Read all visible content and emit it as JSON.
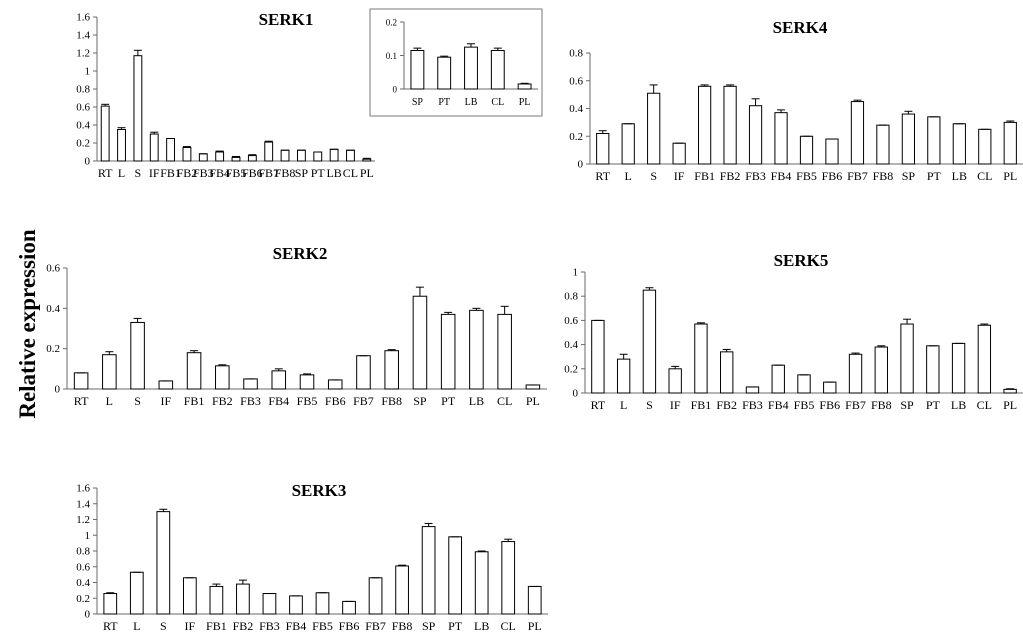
{
  "figure": {
    "ylabel": "Relative expression"
  },
  "chart_data": [
    {
      "id": "serk1",
      "type": "bar",
      "title": "SERK1",
      "xlabel": "",
      "ylabel": "",
      "categories": [
        "RT",
        "L",
        "S",
        "IF",
        "FB1",
        "FB2",
        "FB3",
        "FB4",
        "FB5",
        "FB6",
        "FB7",
        "FB8",
        "SP",
        "PT",
        "LB",
        "CL",
        "PL"
      ],
      "values": [
        0.61,
        0.35,
        1.17,
        0.3,
        0.25,
        0.15,
        0.08,
        0.1,
        0.04,
        0.06,
        0.21,
        0.12,
        0.12,
        0.1,
        0.13,
        0.12,
        0.02
      ],
      "errors": [
        0.02,
        0.02,
        0.06,
        0.02,
        0,
        0.01,
        0,
        0.01,
        0.01,
        0.01,
        0.01,
        0,
        0,
        0,
        0,
        0,
        0.01
      ],
      "ylim": [
        0,
        1.6
      ],
      "yticks": [
        "0",
        "0.2",
        "0.4",
        "0.6",
        "0.8",
        "1",
        "1.2",
        "1.4",
        "1.6"
      ],
      "grid": false,
      "legend": "none",
      "inset": {
        "type": "bar",
        "categories": [
          "SP",
          "PT",
          "LB",
          "CL",
          "PL"
        ],
        "values": [
          0.115,
          0.095,
          0.125,
          0.115,
          0.015
        ],
        "errors": [
          0.007,
          0.003,
          0.01,
          0.007,
          0.002
        ],
        "ylim": [
          0,
          0.2
        ],
        "yticks": [
          "0",
          "0.1",
          "0.2"
        ]
      }
    },
    {
      "id": "serk4",
      "type": "bar",
      "title": "SERK4",
      "xlabel": "",
      "ylabel": "",
      "categories": [
        "RT",
        "L",
        "S",
        "IF",
        "FB1",
        "FB2",
        "FB3",
        "FB4",
        "FB5",
        "FB6",
        "FB7",
        "FB8",
        "SP",
        "PT",
        "LB",
        "CL",
        "PL"
      ],
      "values": [
        0.22,
        0.29,
        0.51,
        0.15,
        0.56,
        0.56,
        0.42,
        0.37,
        0.2,
        0.18,
        0.45,
        0.28,
        0.36,
        0.34,
        0.29,
        0.25,
        0.3
      ],
      "errors": [
        0.02,
        0,
        0.06,
        0,
        0.01,
        0.01,
        0.05,
        0.02,
        0,
        0,
        0.01,
        0,
        0.02,
        0,
        0,
        0,
        0.01
      ],
      "ylim": [
        0,
        0.8
      ],
      "yticks": [
        "0",
        "0.2",
        "0.4",
        "0.6",
        "0.8"
      ],
      "grid": false,
      "legend": "none"
    },
    {
      "id": "serk2",
      "type": "bar",
      "title": "SERK2",
      "xlabel": "",
      "ylabel": "",
      "categories": [
        "RT",
        "L",
        "S",
        "IF",
        "FB1",
        "FB2",
        "FB3",
        "FB4",
        "FB5",
        "FB6",
        "FB7",
        "FB8",
        "SP",
        "PT",
        "LB",
        "CL",
        "PL"
      ],
      "values": [
        0.08,
        0.17,
        0.33,
        0.04,
        0.18,
        0.115,
        0.05,
        0.09,
        0.07,
        0.045,
        0.165,
        0.19,
        0.46,
        0.37,
        0.39,
        0.37,
        0.02
      ],
      "errors": [
        0,
        0.015,
        0.02,
        0,
        0.01,
        0.005,
        0,
        0.01,
        0.005,
        0,
        0,
        0.005,
        0.045,
        0.01,
        0.01,
        0.04,
        0
      ],
      "ylim": [
        0,
        0.6
      ],
      "yticks": [
        "0",
        "0.2",
        "0.4",
        "0.6"
      ],
      "grid": false,
      "legend": "none"
    },
    {
      "id": "serk5",
      "type": "bar",
      "title": "SERK5",
      "xlabel": "",
      "ylabel": "",
      "categories": [
        "RT",
        "L",
        "S",
        "IF",
        "FB1",
        "FB2",
        "FB3",
        "FB4",
        "FB5",
        "FB6",
        "FB7",
        "FB8",
        "SP",
        "PT",
        "LB",
        "CL",
        "PL"
      ],
      "values": [
        0.6,
        0.28,
        0.85,
        0.2,
        0.57,
        0.34,
        0.05,
        0.23,
        0.15,
        0.09,
        0.32,
        0.38,
        0.57,
        0.39,
        0.41,
        0.56,
        0.03
      ],
      "errors": [
        0,
        0.04,
        0.02,
        0.02,
        0.01,
        0.02,
        0,
        0,
        0,
        0,
        0.01,
        0.01,
        0.04,
        0,
        0,
        0.01,
        0.005
      ],
      "ylim": [
        0,
        1
      ],
      "yticks": [
        "0",
        "0.2",
        "0.4",
        "0.6",
        "0.8",
        "1"
      ],
      "grid": false,
      "legend": "none"
    },
    {
      "id": "serk3",
      "type": "bar",
      "title": "SERK3",
      "xlabel": "",
      "ylabel": "",
      "categories": [
        "RT",
        "L",
        "S",
        "IF",
        "FB1",
        "FB2",
        "FB3",
        "FB4",
        "FB5",
        "FB6",
        "FB7",
        "FB8",
        "SP",
        "PT",
        "LB",
        "CL",
        "PL"
      ],
      "values": [
        0.26,
        0.53,
        1.3,
        0.46,
        0.35,
        0.38,
        0.26,
        0.23,
        0.27,
        0.16,
        0.46,
        0.61,
        1.11,
        0.98,
        0.79,
        0.92,
        0.35
      ],
      "errors": [
        0.01,
        0,
        0.03,
        0,
        0.03,
        0.05,
        0,
        0,
        0,
        0,
        0,
        0.01,
        0.04,
        0,
        0.01,
        0.03,
        0
      ],
      "ylim": [
        0,
        1.6
      ],
      "yticks": [
        "0",
        "0.2",
        "0.4",
        "0.6",
        "0.8",
        "1",
        "1.2",
        "1.4",
        "1.6"
      ],
      "grid": false,
      "legend": "none"
    }
  ]
}
